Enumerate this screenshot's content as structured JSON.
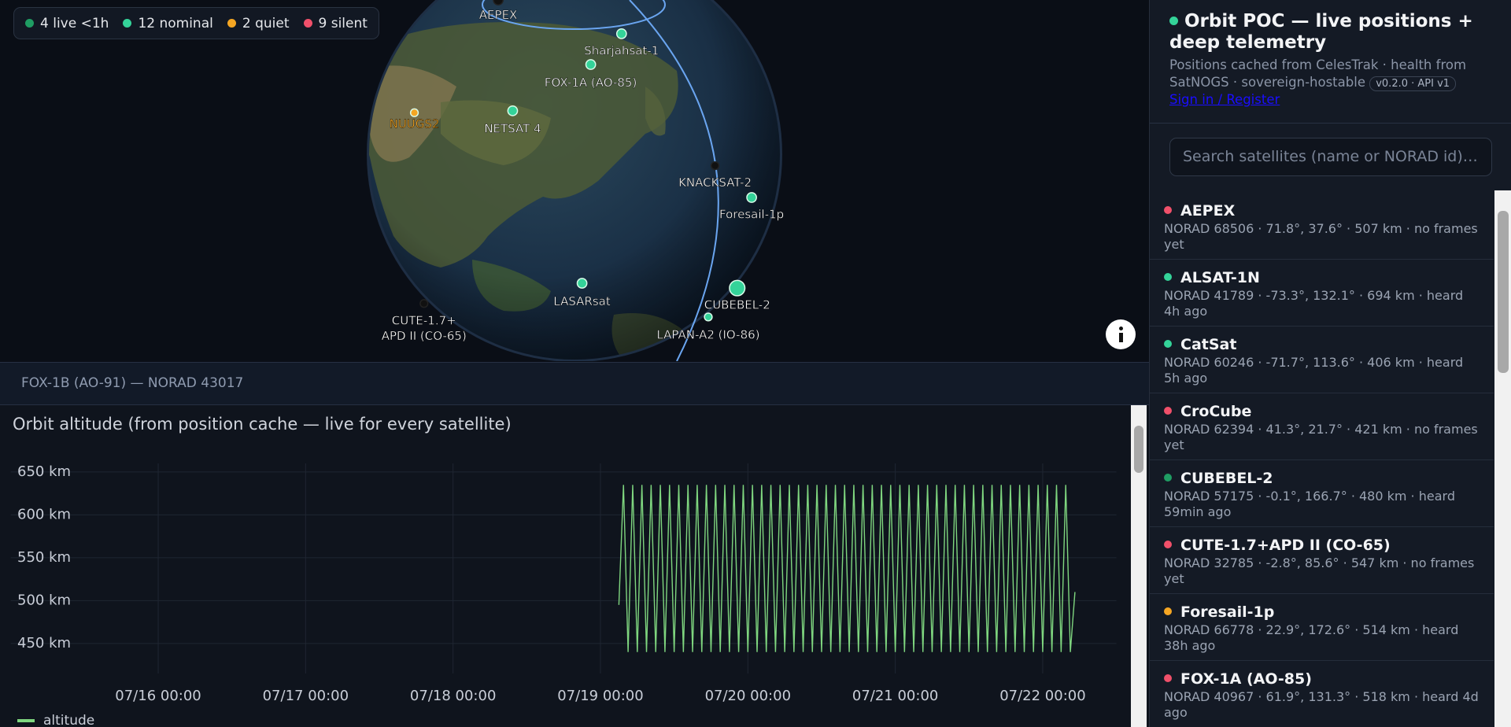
{
  "legend": [
    {
      "label": "4 live <1h",
      "color": "#1f9d63"
    },
    {
      "label": "12 nominal",
      "color": "#34d399"
    },
    {
      "label": "2 quiet",
      "color": "#f5a623"
    },
    {
      "label": "9 silent",
      "color": "#f0506a"
    }
  ],
  "globe": {
    "satellites": [
      {
        "label": "AEPEX",
        "color": "#111111",
        "label_color": "#ffffff"
      },
      {
        "label": "Sharjahsat-1",
        "color": "#34d399",
        "label_color": "#ffffff"
      },
      {
        "label": "FOX-1A (AO-85)",
        "color": "#34d399",
        "label_color": "#ffffff"
      },
      {
        "label": "NETSAT 4",
        "color": "#34d399",
        "label_color": "#ffffff"
      },
      {
        "label": "NUUGS2",
        "color": "#f5a623",
        "label_color": "#f5a623"
      },
      {
        "label": "KNACKSAT-2",
        "color": "#111111",
        "label_color": "#ffffff"
      },
      {
        "label": "Foresail-1p",
        "color": "#34d399",
        "label_color": "#ffffff"
      },
      {
        "label": "LASARsat",
        "color": "#34d399",
        "label_color": "#ffffff"
      },
      {
        "label": "CUBEBEL-2",
        "color": "#34d399",
        "label_color": "#ffffff"
      },
      {
        "label": "LAPAN-A2 (IO-86)",
        "color": "#34d399",
        "label_color": "#ffffff"
      },
      {
        "label": [
          "CUTE-1.7+",
          "APD II (CO-65)"
        ],
        "color": "#111111",
        "label_color": "#ffffff"
      }
    ]
  },
  "selected": "FOX-1B (AO-91) — NORAD 43017",
  "sidebar": {
    "title": "Orbit POC — live positions + deep telemetry",
    "title_dot_color": "#34d399",
    "subtitle": "Positions cached from CelesTrak · health from SatNOGS · sovereign-hostable",
    "badge": "v0.2.0 · API v1",
    "link": "Sign in / Register",
    "search_placeholder": "Search satellites (name or NORAD id)…",
    "satellites": [
      {
        "name": "AEPEX",
        "detail": "NORAD 68506 · 71.8°, 37.6° · 507 km · no frames yet",
        "color": "#f0506a"
      },
      {
        "name": "ALSAT-1N",
        "detail": "NORAD 41789 · -73.3°, 132.1° · 694 km · heard 4h ago",
        "color": "#34d399"
      },
      {
        "name": "CatSat",
        "detail": "NORAD 60246 · -71.7°, 113.6° · 406 km · heard 5h ago",
        "color": "#34d399"
      },
      {
        "name": "CroCube",
        "detail": "NORAD 62394 · 41.3°, 21.7° · 421 km · no frames yet",
        "color": "#f0506a"
      },
      {
        "name": "CUBEBEL-2",
        "detail": "NORAD 57175 · -0.1°, 166.7° · 480 km · heard 59min ago",
        "color": "#1f9d63"
      },
      {
        "name": "CUTE-1.7+APD II (CO-65)",
        "detail": "NORAD 32785 · -2.8°, 85.6° · 547 km · no frames yet",
        "color": "#f0506a"
      },
      {
        "name": "Foresail-1p",
        "detail": "NORAD 66778 · 22.9°, 172.6° · 514 km · heard 38h ago",
        "color": "#f5a623"
      },
      {
        "name": "FOX-1A (AO-85)",
        "detail": "NORAD 40967 · 61.9°, 131.3° · 518 km · heard 4d ago",
        "color": "#f0506a"
      }
    ]
  },
  "chart_data": {
    "type": "line",
    "title": "Orbit altitude (from position cache — live for every satellite)",
    "x": [
      "07/19 03:00",
      "07/19 03:45",
      "07/19 04:30",
      "07/19 05:15",
      "07/19 06:00",
      "07/19 06:45",
      "07/19 07:30",
      "07/19 08:15",
      "07/19 09:00",
      "07/19 09:45",
      "07/19 10:30",
      "07/19 11:15",
      "07/19 12:00",
      "07/19 12:45",
      "07/19 13:30",
      "07/19 14:15",
      "07/19 15:00",
      "07/19 15:45",
      "07/19 16:30",
      "07/19 17:15",
      "07/19 18:00",
      "07/19 18:45",
      "07/19 19:30",
      "07/19 20:15",
      "07/19 21:00",
      "07/19 21:45",
      "07/19 22:30",
      "07/19 23:15",
      "07/20 00:00",
      "07/20 00:45",
      "07/20 01:30",
      "07/20 02:15",
      "07/20 03:00",
      "07/20 03:45",
      "07/20 04:30",
      "07/20 05:15",
      "07/20 06:00",
      "07/20 06:45",
      "07/20 07:30",
      "07/20 08:15",
      "07/20 09:00",
      "07/20 09:45",
      "07/20 10:30",
      "07/20 11:15",
      "07/20 12:00",
      "07/20 12:45",
      "07/20 13:30",
      "07/20 14:15",
      "07/20 15:00",
      "07/20 15:45",
      "07/20 16:30",
      "07/20 17:15",
      "07/20 18:00",
      "07/20 18:45",
      "07/20 19:30",
      "07/20 20:15",
      "07/20 21:00",
      "07/20 21:45",
      "07/20 22:30",
      "07/20 23:15",
      "07/21 00:00",
      "07/21 00:45",
      "07/21 01:30",
      "07/21 02:15",
      "07/21 03:00",
      "07/21 03:45",
      "07/21 04:30",
      "07/21 05:15",
      "07/21 06:00",
      "07/21 06:45",
      "07/21 07:30",
      "07/21 08:15",
      "07/21 09:00",
      "07/21 09:45",
      "07/21 10:30",
      "07/21 11:15",
      "07/21 12:00",
      "07/21 12:45",
      "07/21 13:30",
      "07/21 14:15",
      "07/21 15:00",
      "07/21 15:45",
      "07/21 16:30",
      "07/21 17:15",
      "07/21 18:00",
      "07/21 18:45",
      "07/21 19:30",
      "07/21 20:15",
      "07/21 21:00",
      "07/21 21:45",
      "07/21 22:30",
      "07/21 23:15",
      "07/22 00:00",
      "07/22 00:45",
      "07/22 01:30",
      "07/22 02:15",
      "07/22 03:00",
      "07/22 03:45",
      "07/22 04:30",
      "07/22 05:15"
    ],
    "series": [
      {
        "name": "altitude",
        "color": "#7fd67f",
        "values": [
          495,
          635,
          440,
          635,
          440,
          635,
          440,
          635,
          440,
          635,
          440,
          635,
          440,
          635,
          440,
          635,
          440,
          635,
          440,
          635,
          440,
          635,
          440,
          635,
          440,
          635,
          440,
          635,
          440,
          635,
          440,
          635,
          440,
          635,
          440,
          635,
          440,
          635,
          440,
          635,
          440,
          635,
          440,
          635,
          440,
          635,
          440,
          635,
          440,
          635,
          440,
          635,
          440,
          635,
          440,
          635,
          440,
          635,
          440,
          635,
          440,
          635,
          440,
          635,
          440,
          635,
          440,
          635,
          440,
          635,
          440,
          635,
          440,
          635,
          440,
          635,
          440,
          635,
          440,
          635,
          440,
          635,
          440,
          635,
          440,
          635,
          440,
          635,
          440,
          635,
          440,
          635,
          440,
          635,
          440,
          635,
          440,
          635,
          440,
          510
        ]
      }
    ],
    "xlim": [
      "07/15 00:00",
      "07/22 12:00"
    ],
    "xticks": [
      "07/16 00:00",
      "07/17 00:00",
      "07/18 00:00",
      "07/19 00:00",
      "07/20 00:00",
      "07/21 00:00",
      "07/22 00:00"
    ],
    "ylim": [
      415,
      660
    ],
    "yticks": [
      {
        "value": 650,
        "label": "650 km"
      },
      {
        "value": 600,
        "label": "600 km"
      },
      {
        "value": 550,
        "label": "550 km"
      },
      {
        "value": 500,
        "label": "500 km"
      },
      {
        "value": 450,
        "label": "450 km"
      }
    ],
    "grid": true
  }
}
